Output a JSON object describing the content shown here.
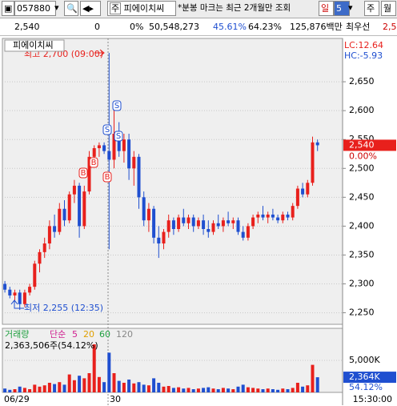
{
  "toolbar": {
    "code": "057880",
    "name": "피에이치씨",
    "notice": "*분봉 마크는 최근 2개월만 조회",
    "period": "일",
    "interval": "5",
    "week": "주",
    "month": "월"
  },
  "info": [
    "2,540",
    "0",
    "0%",
    "50,548,273",
    "45.61%",
    "64.23%",
    "125,876백만",
    "최우선",
    "2,5"
  ],
  "chart_data": {
    "type": "candlestick",
    "legend": "피에이치씨",
    "high_label": "최고 2,700 (09:00)",
    "low_label": "최저 2,255 (12:35)",
    "lc": "LC:12.64",
    "hc": "HC:-5.93",
    "x_labels": [
      "06/29",
      "30",
      "15:30:00"
    ],
    "open": [
      2300,
      2290,
      2280,
      2285,
      2265,
      2285,
      2295,
      2335,
      2355,
      2370,
      2400,
      2390,
      2430,
      2410,
      2455,
      2470,
      2400,
      2460,
      2520,
      2535,
      2540,
      2530,
      2515,
      2560,
      2530,
      2550,
      2500,
      2520,
      2450,
      2410,
      2430,
      2380,
      2370,
      2390,
      2410,
      2395,
      2415,
      2405,
      2415,
      2400,
      2410,
      2395,
      2390,
      2405,
      2400,
      2410,
      2405,
      2410,
      2390,
      2380,
      2400,
      2415,
      2420,
      2415,
      2420,
      2415,
      2410,
      2420,
      2415,
      2435,
      2465,
      2455,
      2475,
      2545
    ],
    "high": [
      2305,
      2295,
      2290,
      2290,
      2290,
      2300,
      2340,
      2360,
      2380,
      2410,
      2420,
      2440,
      2445,
      2460,
      2480,
      2475,
      2470,
      2530,
      2540,
      2545,
      2545,
      2700,
      2600,
      2580,
      2560,
      2560,
      2530,
      2525,
      2460,
      2440,
      2435,
      2400,
      2395,
      2420,
      2415,
      2420,
      2430,
      2420,
      2420,
      2415,
      2420,
      2410,
      2410,
      2420,
      2415,
      2425,
      2415,
      2415,
      2400,
      2405,
      2420,
      2425,
      2435,
      2425,
      2430,
      2420,
      2425,
      2425,
      2440,
      2470,
      2475,
      2480,
      2555,
      2550
    ],
    "low": [
      2285,
      2275,
      2270,
      2255,
      2260,
      2280,
      2290,
      2320,
      2345,
      2360,
      2380,
      2385,
      2400,
      2405,
      2440,
      2380,
      2395,
      2455,
      2510,
      2520,
      2525,
      2360,
      2500,
      2520,
      2510,
      2480,
      2470,
      2430,
      2400,
      2390,
      2370,
      2345,
      2360,
      2380,
      2385,
      2390,
      2400,
      2395,
      2390,
      2395,
      2385,
      2380,
      2385,
      2395,
      2390,
      2400,
      2395,
      2385,
      2375,
      2375,
      2395,
      2405,
      2410,
      2405,
      2410,
      2405,
      2405,
      2410,
      2410,
      2430,
      2450,
      2450,
      2470,
      2530
    ],
    "close": [
      2290,
      2280,
      2285,
      2265,
      2285,
      2295,
      2335,
      2355,
      2370,
      2400,
      2390,
      2430,
      2410,
      2455,
      2470,
      2400,
      2460,
      2520,
      2535,
      2540,
      2530,
      2515,
      2560,
      2530,
      2550,
      2500,
      2520,
      2450,
      2410,
      2430,
      2380,
      2370,
      2390,
      2410,
      2395,
      2415,
      2405,
      2415,
      2400,
      2410,
      2395,
      2390,
      2405,
      2400,
      2410,
      2405,
      2410,
      2390,
      2380,
      2400,
      2415,
      2420,
      2415,
      2420,
      2415,
      2410,
      2420,
      2415,
      2435,
      2465,
      2455,
      2475,
      2545,
      2540
    ],
    "ylim": [
      2230,
      2725
    ],
    "yticks": [
      {
        "value": 2650,
        "label": "2,650"
      },
      {
        "value": 2600,
        "label": "2,600"
      },
      {
        "value": 2550,
        "label": "2,550"
      },
      {
        "value": 2500,
        "label": "2,500"
      },
      {
        "value": 2450,
        "label": "2,450"
      },
      {
        "value": 2400,
        "label": "2,400"
      },
      {
        "value": 2350,
        "label": "2,350"
      },
      {
        "value": 2300,
        "label": "2,300"
      },
      {
        "value": 2250,
        "label": "2,250"
      }
    ],
    "current": {
      "value": 2540,
      "label": "2,540"
    },
    "change_label": "0.00%",
    "signals": [
      "B",
      "B",
      "B",
      "S",
      "S",
      "S"
    ],
    "up_color": "#e8201c",
    "down_color": "#1f4fd0",
    "volume": {
      "title": "거래량",
      "ma_label": "단순",
      "ma": [
        "5",
        "20",
        "60",
        "120"
      ],
      "ma_colors": [
        "#d02090",
        "#e0a000",
        "#20a040",
        "#888888"
      ],
      "summary": "2,363,506주(54.12%)",
      "values": [
        600,
        400,
        500,
        900,
        700,
        500,
        1200,
        900,
        1100,
        1500,
        1300,
        1600,
        1200,
        2800,
        1900,
        2600,
        2200,
        3000,
        7500,
        2400,
        1600,
        6200,
        3000,
        1800,
        1500,
        2000,
        1400,
        1600,
        1200,
        1100,
        2200,
        1500,
        900,
        1000,
        700,
        800,
        600,
        700,
        500,
        600,
        700,
        800,
        600,
        500,
        700,
        600,
        500,
        900,
        1200,
        800,
        700,
        600,
        500,
        600,
        500,
        400,
        600,
        500,
        700,
        1500,
        900,
        1100,
        4300,
        2364
      ],
      "ylim": [
        0,
        10000
      ],
      "yticks": [
        {
          "value": 5000,
          "label": "5,000K"
        }
      ],
      "current": {
        "value": 2364,
        "label": "2,364K"
      },
      "pct": "54.12%"
    }
  }
}
